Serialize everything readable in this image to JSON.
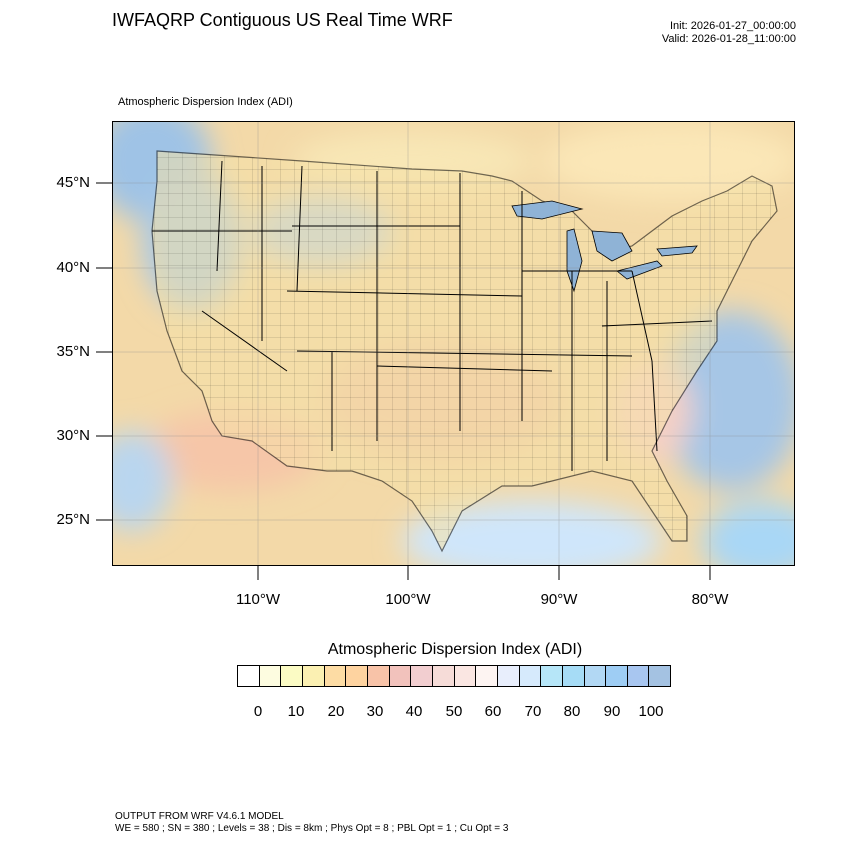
{
  "header": {
    "title": "IWFAQRP Contiguous US Real Time WRF",
    "init": "Init: 2026-01-27_00:00:00",
    "valid": "Valid: 2026-01-28_11:00:00"
  },
  "map": {
    "subtitle": "Atmospheric Dispersion Index   (ADI)",
    "lat_labels": [
      "45°N",
      "40°N",
      "35°N",
      "30°N",
      "25°N"
    ],
    "lon_labels": [
      "110°W",
      "100°W",
      "90°W",
      "80°W"
    ],
    "ocean_color": "#a8c6e0",
    "land_color": "#f6e2a8"
  },
  "colorbar": {
    "title": "Atmospheric Dispersion Index  (ADI)",
    "tick_labels": [
      "0",
      "10",
      "20",
      "30",
      "40",
      "50",
      "60",
      "70",
      "80",
      "90",
      "100"
    ],
    "colors": [
      "#ffffff",
      "#fdfce0",
      "#fbfbc4",
      "#fbf0b2",
      "#fddca4",
      "#fed3a0",
      "#f8c3a8",
      "#f2c2bc",
      "#f2ced0",
      "#f6dcd8",
      "#fae6e2",
      "#fdf4f2",
      "#e8eefc",
      "#d6eafc",
      "#b6e6f8",
      "#a6dcf6",
      "#b2d8f4",
      "#9ecdf4",
      "#a8c6f0",
      "#a4c2e2"
    ]
  },
  "footer": {
    "line1": "OUTPUT FROM WRF V4.6.1 MODEL",
    "line2": "WE = 580 ; SN = 380 ; Levels = 38 ; Dis = 8km ; Phys Opt = 8 ; PBL Opt = 1 ; Cu Opt = 3"
  }
}
